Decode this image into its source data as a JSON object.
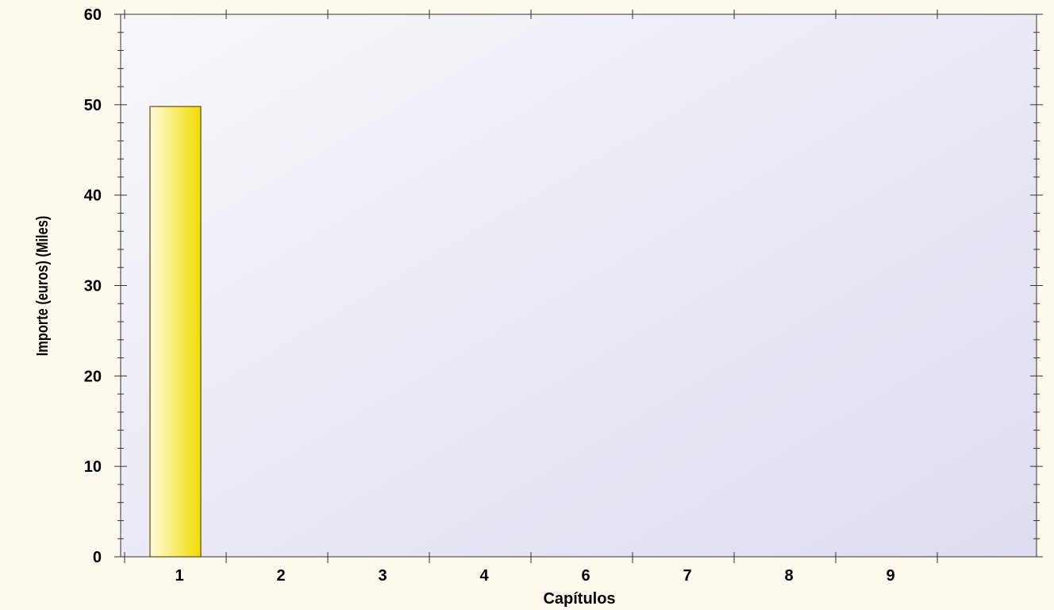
{
  "chart_data": {
    "type": "bar",
    "title": "",
    "xlabel": "Capítulos",
    "ylabel": "Importe (euros) (Miles)",
    "categories": [
      "1",
      "2",
      "3",
      "4",
      "6",
      "7",
      "8",
      "9"
    ],
    "values": [
      49.8,
      0,
      0,
      0,
      0,
      0,
      0,
      0
    ],
    "ylim": [
      0,
      60
    ],
    "yticks": [
      0,
      10,
      20,
      30,
      40,
      50,
      60
    ],
    "grid": false,
    "legend": "none",
    "colors": {
      "bar_light": "#fffbe0",
      "bar_dark": "#f0dc00",
      "plot_bg_start": "#f7f7fb",
      "plot_bg_end": "#dedcf0",
      "page_bg": "#fff9ee"
    }
  }
}
